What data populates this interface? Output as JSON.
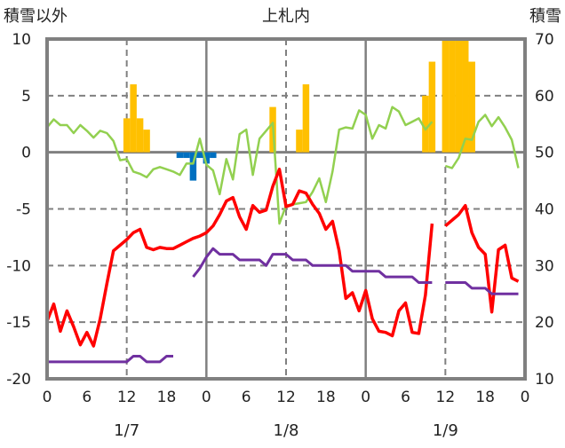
{
  "chart_data": {
    "type": "line",
    "title": "上札内",
    "ylabel_left": "積雪以外",
    "ylabel_right": "積雪",
    "ylim_left": [
      -20,
      10
    ],
    "ylim_right": [
      10,
      70
    ],
    "yticks_left": [
      "10",
      "5",
      "0",
      "-5",
      "-10",
      "-15",
      "-20"
    ],
    "yticks_right": [
      "70",
      "60",
      "50",
      "40",
      "30",
      "20",
      "10"
    ],
    "xlim_hours": [
      0,
      72
    ],
    "xticks": [
      "0",
      "6",
      "12",
      "18",
      "0",
      "6",
      "12",
      "18",
      "0",
      "6",
      "12",
      "18",
      "0"
    ],
    "date_labels": [
      "1/7",
      "1/8",
      "1/9"
    ],
    "grid": true,
    "series": [
      {
        "name": "orange-bars",
        "type": "bar",
        "axis": "left",
        "color": "#FFC000",
        "x": [
          12,
          13,
          14,
          15,
          34,
          38,
          39,
          57,
          58,
          60,
          61,
          62,
          63,
          64
        ],
        "values": [
          3,
          6,
          3,
          2,
          4,
          2,
          6,
          5,
          8,
          10,
          10,
          10,
          10,
          8
        ]
      },
      {
        "name": "blue-bars",
        "type": "bar",
        "axis": "left",
        "color": "#0070C0",
        "x": [
          20,
          21,
          22,
          23,
          24,
          25
        ],
        "values": [
          -0.5,
          -0.5,
          -2.5,
          -0.5,
          -1,
          -0.5
        ]
      },
      {
        "name": "green-line",
        "type": "line",
        "axis": "left",
        "color": "#92D050",
        "segments": [
          {
            "x0": 0,
            "values": [
              2.2,
              2.9,
              2.4,
              2.4,
              1.7,
              2.4,
              1.9,
              1.3,
              1.9,
              1.7,
              1.0,
              -0.7,
              -0.6,
              -1.7,
              -1.9,
              -2.2,
              -1.5,
              -1.3,
              -1.5,
              -1.7,
              -2.0,
              -1.0,
              -1.0,
              1.2,
              -1.1,
              -1.6,
              -3.7,
              -0.6,
              -2.4,
              1.6,
              2.0,
              -2.0,
              1.2,
              1.9,
              2.6,
              -6.3,
              -4.7,
              -4.6,
              -4.5,
              -4.4,
              -3.5,
              -2.3,
              -4.4,
              -1.7,
              2.0,
              2.2,
              2.1,
              3.7,
              3.3,
              1.2,
              2.4,
              2.1,
              4.0,
              3.6,
              2.4,
              2.7,
              3.0,
              2.0,
              2.7
            ]
          },
          {
            "x0": 60,
            "values": [
              -1.2,
              -1.4,
              -0.5,
              1.2,
              1.1,
              2.7,
              3.3,
              2.3,
              3.1,
              2.2,
              1.1,
              -1.4
            ]
          }
        ]
      },
      {
        "name": "red-line",
        "type": "line",
        "axis": "left",
        "color": "#FF0000",
        "segments": [
          {
            "x0": 0,
            "values": [
              -14.9,
              -13.4,
              -15.8,
              -14.0,
              -15.4,
              -17.0,
              -15.9,
              -17.1,
              -14.7,
              -11.6,
              -8.7,
              -8.2,
              -7.7,
              -7.1,
              -6.8,
              -8.4,
              -8.6,
              -8.4,
              -8.5,
              -8.5,
              -8.2,
              -7.9,
              -7.6,
              -7.4,
              -7.1,
              -6.5,
              -5.5,
              -4.3,
              -4.0,
              -5.7,
              -6.8,
              -4.7,
              -5.3,
              -5.1,
              -3.0,
              -1.5,
              -4.8,
              -4.6,
              -3.4,
              -3.6,
              -4.6,
              -5.4,
              -6.8,
              -6.1,
              -8.7,
              -12.9,
              -12.4,
              -14.0,
              -12.2,
              -14.7,
              -15.8,
              -15.9,
              -16.2,
              -14.0,
              -13.3,
              -15.9,
              -16.0,
              -12.6,
              -6.3
            ]
          },
          {
            "x0": 60,
            "values": [
              -6.5,
              -6.0,
              -5.5,
              -4.7,
              -7.1,
              -8.4,
              -9.0,
              -14.1,
              -8.6,
              -8.2,
              -11.1,
              -11.4
            ]
          }
        ]
      },
      {
        "name": "purple-line",
        "type": "line",
        "axis": "right",
        "color": "#7030A0",
        "segments": [
          {
            "x0": 0,
            "values": [
              13,
              13,
              13,
              13,
              13,
              13,
              13,
              13,
              13,
              13,
              13,
              13,
              13,
              14,
              14,
              13,
              13,
              13,
              14,
              14
            ]
          },
          {
            "x0": 22,
            "values": [
              28,
              29.5,
              31.5,
              33,
              32,
              32,
              32,
              31,
              31,
              31,
              31,
              30,
              32,
              32,
              32,
              31,
              31,
              31,
              30,
              30,
              30,
              30,
              30,
              30,
              29,
              29,
              29,
              29,
              29,
              28,
              28,
              28,
              28,
              28,
              27,
              27,
              27
            ]
          },
          {
            "x0": 60,
            "values": [
              27,
              27,
              27,
              27,
              26,
              26,
              26,
              25,
              25,
              25,
              25,
              25
            ]
          }
        ]
      }
    ]
  }
}
